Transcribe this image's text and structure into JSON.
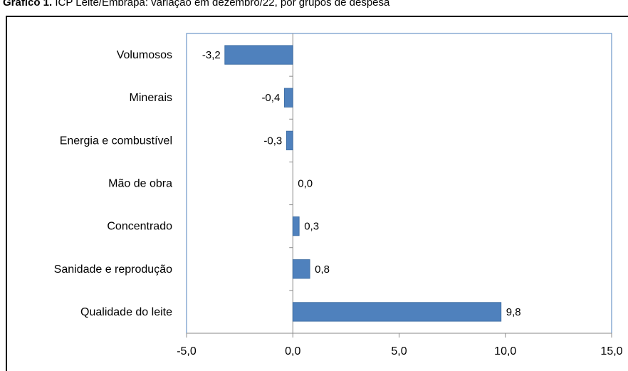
{
  "title_prefix": "Gráfico 1.",
  "title_rest": " ICP Leite/Embrapa: variação em dezembro/22, por grupos de despesa",
  "chart_data": {
    "type": "bar",
    "orientation": "horizontal",
    "categories": [
      "Volumosos",
      "Minerais",
      "Energia e combustível",
      "Mão de obra",
      "Concentrado",
      "Sanidade e reprodução",
      "Qualidade do leite"
    ],
    "values": [
      -3.2,
      -0.4,
      -0.3,
      0.0,
      0.3,
      0.8,
      9.8
    ],
    "value_labels": [
      "-3,2",
      "-0,4",
      "-0,3",
      "0,0",
      "0,3",
      "0,8",
      "9,8"
    ],
    "xlim": [
      -5,
      15
    ],
    "xticks": [
      -5,
      0,
      5,
      10,
      15
    ],
    "xtick_labels": [
      "-5,0",
      "0,0",
      "5,0",
      "10,0",
      "15,0"
    ],
    "bar_color": "#4f81bd",
    "grid": false,
    "legend": "none"
  }
}
